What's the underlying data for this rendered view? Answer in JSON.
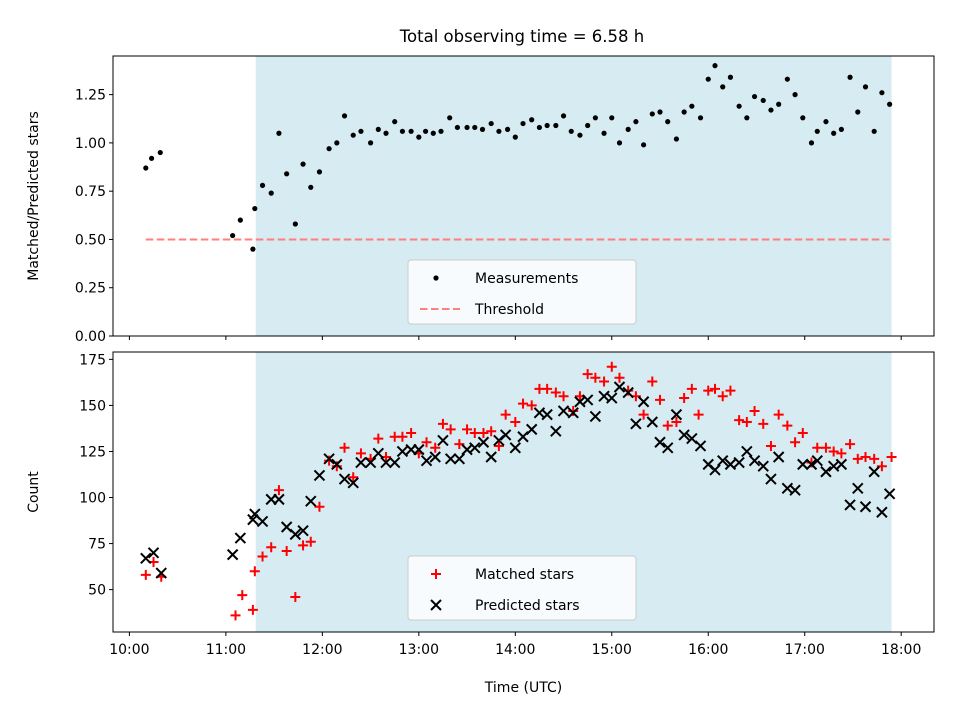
{
  "title": "Total observing time = 6.58 h",
  "chart_data": [
    {
      "type": "scatter",
      "panel": "top",
      "ylabel": "Matched/Predicted stars",
      "xlabel": "",
      "x_tick_labels_shown": false,
      "xlim_hours": [
        9.83,
        18.34
      ],
      "ylim": [
        0,
        1.45
      ],
      "yticks": [
        "0.00",
        "0.25",
        "0.50",
        "0.75",
        "1.00",
        "1.25"
      ],
      "shaded_interval_hours": [
        11.31,
        17.9
      ],
      "shade_color": "#add8e6",
      "legend": {
        "placement": "lower center"
      },
      "series": [
        {
          "name": "Measurements",
          "marker": "dot",
          "color": "#000000",
          "points": [
            [
              10.17,
              0.87
            ],
            [
              10.23,
              0.92
            ],
            [
              10.32,
              0.95
            ],
            [
              11.07,
              0.52
            ],
            [
              11.15,
              0.6
            ],
            [
              11.28,
              0.45
            ],
            [
              11.3,
              0.66
            ],
            [
              11.38,
              0.78
            ],
            [
              11.47,
              0.74
            ],
            [
              11.55,
              1.05
            ],
            [
              11.63,
              0.84
            ],
            [
              11.72,
              0.58
            ],
            [
              11.8,
              0.89
            ],
            [
              11.88,
              0.77
            ],
            [
              11.97,
              0.85
            ],
            [
              12.07,
              0.97
            ],
            [
              12.15,
              1.0
            ],
            [
              12.23,
              1.14
            ],
            [
              12.32,
              1.04
            ],
            [
              12.4,
              1.06
            ],
            [
              12.5,
              1.0
            ],
            [
              12.58,
              1.07
            ],
            [
              12.66,
              1.05
            ],
            [
              12.75,
              1.11
            ],
            [
              12.83,
              1.06
            ],
            [
              12.92,
              1.06
            ],
            [
              13.0,
              1.03
            ],
            [
              13.07,
              1.06
            ],
            [
              13.15,
              1.05
            ],
            [
              13.23,
              1.06
            ],
            [
              13.32,
              1.13
            ],
            [
              13.4,
              1.08
            ],
            [
              13.5,
              1.08
            ],
            [
              13.58,
              1.08
            ],
            [
              13.66,
              1.07
            ],
            [
              13.75,
              1.1
            ],
            [
              13.83,
              1.06
            ],
            [
              13.92,
              1.07
            ],
            [
              14.0,
              1.03
            ],
            [
              14.08,
              1.1
            ],
            [
              14.17,
              1.12
            ],
            [
              14.25,
              1.08
            ],
            [
              14.33,
              1.09
            ],
            [
              14.42,
              1.09
            ],
            [
              14.5,
              1.14
            ],
            [
              14.58,
              1.06
            ],
            [
              14.67,
              1.04
            ],
            [
              14.75,
              1.09
            ],
            [
              14.83,
              1.13
            ],
            [
              14.92,
              1.05
            ],
            [
              15.0,
              1.13
            ],
            [
              15.08,
              1.0
            ],
            [
              15.17,
              1.07
            ],
            [
              15.25,
              1.11
            ],
            [
              15.33,
              0.99
            ],
            [
              15.42,
              1.15
            ],
            [
              15.5,
              1.16
            ],
            [
              15.58,
              1.11
            ],
            [
              15.67,
              1.02
            ],
            [
              15.75,
              1.16
            ],
            [
              15.83,
              1.19
            ],
            [
              15.92,
              1.13
            ],
            [
              16.0,
              1.33
            ],
            [
              16.07,
              1.4
            ],
            [
              16.15,
              1.29
            ],
            [
              16.23,
              1.34
            ],
            [
              16.32,
              1.19
            ],
            [
              16.4,
              1.13
            ],
            [
              16.48,
              1.24
            ],
            [
              16.57,
              1.22
            ],
            [
              16.65,
              1.17
            ],
            [
              16.73,
              1.2
            ],
            [
              16.82,
              1.33
            ],
            [
              16.9,
              1.25
            ],
            [
              16.98,
              1.13
            ],
            [
              17.07,
              1.0
            ],
            [
              17.13,
              1.06
            ],
            [
              17.22,
              1.11
            ],
            [
              17.3,
              1.05
            ],
            [
              17.38,
              1.07
            ],
            [
              17.47,
              1.34
            ],
            [
              17.55,
              1.16
            ],
            [
              17.63,
              1.29
            ],
            [
              17.72,
              1.06
            ],
            [
              17.8,
              1.26
            ],
            [
              17.88,
              1.2
            ]
          ]
        },
        {
          "name": "Threshold",
          "marker": "dashed-line",
          "color": "#ff7f7f",
          "points": [
            [
              10.17,
              0.5
            ],
            [
              17.88,
              0.5
            ]
          ]
        }
      ]
    },
    {
      "type": "scatter",
      "panel": "bottom",
      "ylabel": "Count",
      "xlabel": "Time (UTC)",
      "xlim_hours": [
        9.83,
        18.34
      ],
      "xticks_hours": [
        10,
        11,
        12,
        13,
        14,
        15,
        16,
        17,
        18
      ],
      "xtick_labels": [
        "10:00",
        "11:00",
        "12:00",
        "13:00",
        "14:00",
        "15:00",
        "16:00",
        "17:00",
        "18:00"
      ],
      "ylim": [
        27,
        179
      ],
      "yticks": [
        "50",
        "75",
        "100",
        "125",
        "150",
        "175"
      ],
      "shaded_interval_hours": [
        11.31,
        17.9
      ],
      "shade_color": "#add8e6",
      "legend": {
        "placement": "lower center"
      },
      "series": [
        {
          "name": "Matched stars",
          "marker": "plus",
          "color": "#ff0000",
          "points": [
            [
              10.17,
              58
            ],
            [
              10.25,
              65
            ],
            [
              10.33,
              57
            ],
            [
              11.1,
              36
            ],
            [
              11.17,
              47
            ],
            [
              11.28,
              39
            ],
            [
              11.3,
              60
            ],
            [
              11.38,
              68
            ],
            [
              11.47,
              73
            ],
            [
              11.55,
              104
            ],
            [
              11.63,
              71
            ],
            [
              11.72,
              46
            ],
            [
              11.8,
              74
            ],
            [
              11.88,
              76
            ],
            [
              11.97,
              95
            ],
            [
              12.07,
              120
            ],
            [
              12.15,
              117
            ],
            [
              12.23,
              127
            ],
            [
              12.32,
              111
            ],
            [
              12.4,
              124
            ],
            [
              12.5,
              121
            ],
            [
              12.58,
              132
            ],
            [
              12.66,
              122
            ],
            [
              12.75,
              133
            ],
            [
              12.83,
              133
            ],
            [
              12.92,
              135
            ],
            [
              13.0,
              124
            ],
            [
              13.08,
              130
            ],
            [
              13.17,
              127
            ],
            [
              13.25,
              140
            ],
            [
              13.33,
              137
            ],
            [
              13.42,
              129
            ],
            [
              13.5,
              137
            ],
            [
              13.58,
              135
            ],
            [
              13.67,
              135
            ],
            [
              13.75,
              136
            ],
            [
              13.83,
              128
            ],
            [
              13.9,
              145
            ],
            [
              14.0,
              141
            ],
            [
              14.08,
              151
            ],
            [
              14.17,
              150
            ],
            [
              14.25,
              159
            ],
            [
              14.33,
              159
            ],
            [
              14.42,
              157
            ],
            [
              14.5,
              155
            ],
            [
              14.6,
              147
            ],
            [
              14.67,
              155
            ],
            [
              14.75,
              167
            ],
            [
              14.83,
              165
            ],
            [
              14.92,
              163
            ],
            [
              15.0,
              171
            ],
            [
              15.08,
              165
            ],
            [
              15.17,
              158
            ],
            [
              15.25,
              155
            ],
            [
              15.33,
              145
            ],
            [
              15.42,
              163
            ],
            [
              15.5,
              153
            ],
            [
              15.58,
              139
            ],
            [
              15.67,
              141
            ],
            [
              15.75,
              154
            ],
            [
              15.83,
              159
            ],
            [
              15.9,
              145
            ],
            [
              16.0,
              158
            ],
            [
              16.07,
              159
            ],
            [
              16.15,
              155
            ],
            [
              16.23,
              158
            ],
            [
              16.32,
              142
            ],
            [
              16.4,
              141
            ],
            [
              16.48,
              147
            ],
            [
              16.57,
              140
            ],
            [
              16.65,
              128
            ],
            [
              16.73,
              145
            ],
            [
              16.82,
              139
            ],
            [
              16.9,
              130
            ],
            [
              16.98,
              135
            ],
            [
              17.07,
              119
            ],
            [
              17.13,
              127
            ],
            [
              17.22,
              127
            ],
            [
              17.3,
              125
            ],
            [
              17.38,
              124
            ],
            [
              17.47,
              129
            ],
            [
              17.55,
              121
            ],
            [
              17.63,
              122
            ],
            [
              17.72,
              121
            ],
            [
              17.8,
              117
            ],
            [
              17.9,
              122
            ]
          ]
        },
        {
          "name": "Predicted stars",
          "marker": "x",
          "color": "#000000",
          "points": [
            [
              10.17,
              67
            ],
            [
              10.25,
              70
            ],
            [
              10.33,
              59
            ],
            [
              11.07,
              69
            ],
            [
              11.15,
              78
            ],
            [
              11.28,
              88
            ],
            [
              11.3,
              91
            ],
            [
              11.38,
              87
            ],
            [
              11.47,
              99
            ],
            [
              11.55,
              99
            ],
            [
              11.63,
              84
            ],
            [
              11.72,
              80
            ],
            [
              11.8,
              82
            ],
            [
              11.88,
              98
            ],
            [
              11.97,
              112
            ],
            [
              12.07,
              121
            ],
            [
              12.15,
              118
            ],
            [
              12.23,
              110
            ],
            [
              12.32,
              108
            ],
            [
              12.4,
              119
            ],
            [
              12.5,
              119
            ],
            [
              12.58,
              124
            ],
            [
              12.66,
              119
            ],
            [
              12.75,
              119
            ],
            [
              12.83,
              125
            ],
            [
              12.92,
              126
            ],
            [
              13.0,
              126
            ],
            [
              13.08,
              120
            ],
            [
              13.17,
              122
            ],
            [
              13.25,
              131
            ],
            [
              13.33,
              121
            ],
            [
              13.42,
              121
            ],
            [
              13.5,
              126
            ],
            [
              13.58,
              127
            ],
            [
              13.67,
              130
            ],
            [
              13.75,
              122
            ],
            [
              13.83,
              131
            ],
            [
              13.9,
              134
            ],
            [
              14.0,
              127
            ],
            [
              14.08,
              133
            ],
            [
              14.17,
              137
            ],
            [
              14.25,
              146
            ],
            [
              14.33,
              145
            ],
            [
              14.42,
              136
            ],
            [
              14.5,
              147
            ],
            [
              14.6,
              146
            ],
            [
              14.67,
              152
            ],
            [
              14.75,
              153
            ],
            [
              14.83,
              144
            ],
            [
              14.92,
              155
            ],
            [
              15.0,
              154
            ],
            [
              15.08,
              160
            ],
            [
              15.17,
              157
            ],
            [
              15.25,
              140
            ],
            [
              15.33,
              152
            ],
            [
              15.42,
              141
            ],
            [
              15.5,
              130
            ],
            [
              15.58,
              127
            ],
            [
              15.67,
              145
            ],
            [
              15.75,
              134
            ],
            [
              15.83,
              132
            ],
            [
              15.92,
              128
            ],
            [
              16.0,
              118
            ],
            [
              16.07,
              115
            ],
            [
              16.15,
              120
            ],
            [
              16.23,
              118
            ],
            [
              16.32,
              119
            ],
            [
              16.4,
              125
            ],
            [
              16.48,
              120
            ],
            [
              16.57,
              117
            ],
            [
              16.65,
              110
            ],
            [
              16.73,
              122
            ],
            [
              16.82,
              105
            ],
            [
              16.9,
              104
            ],
            [
              16.98,
              118
            ],
            [
              17.07,
              118
            ],
            [
              17.13,
              120
            ],
            [
              17.22,
              114
            ],
            [
              17.3,
              117
            ],
            [
              17.38,
              118
            ],
            [
              17.47,
              96
            ],
            [
              17.55,
              105
            ],
            [
              17.63,
              95
            ],
            [
              17.72,
              114
            ],
            [
              17.8,
              92
            ],
            [
              17.88,
              102
            ]
          ]
        }
      ]
    }
  ]
}
